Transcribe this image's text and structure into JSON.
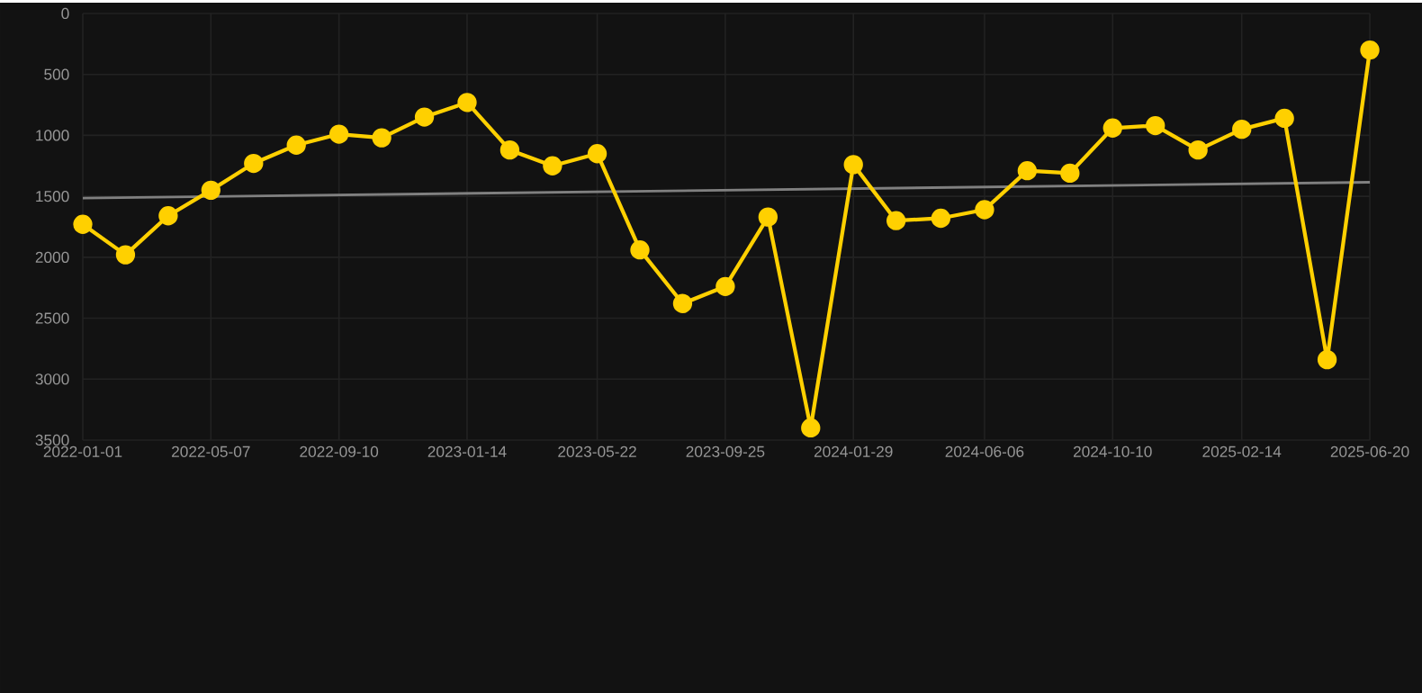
{
  "chart_data": {
    "type": "line",
    "x": [
      "2022-01-01",
      "2022-02-12",
      "2022-03-26",
      "2022-05-07",
      "2022-06-18",
      "2022-07-30",
      "2022-09-10",
      "2022-10-22",
      "2022-12-03",
      "2023-01-14",
      "2023-02-25",
      "2023-04-08",
      "2023-05-22",
      "2023-07-03",
      "2023-08-14",
      "2023-09-25",
      "2023-11-06",
      "2023-12-18",
      "2024-01-29",
      "2024-03-11",
      "2024-04-24",
      "2024-06-06",
      "2024-07-18",
      "2024-08-29",
      "2024-10-10",
      "2024-11-21",
      "2025-01-02",
      "2025-02-14",
      "2025-03-28",
      "2025-05-09",
      "2025-06-20"
    ],
    "series": [
      {
        "color": "#ffd000",
        "marker": "circle",
        "values": [
          1730,
          1980,
          1660,
          1450,
          1230,
          1080,
          990,
          1020,
          850,
          730,
          1120,
          1250,
          1150,
          1940,
          2380,
          2240,
          1670,
          3400,
          1240,
          1700,
          1680,
          1610,
          1290,
          1310,
          940,
          920,
          1120,
          950,
          860,
          2840,
          300
        ]
      },
      {
        "type": "line",
        "color": "#808080",
        "marker": "none",
        "x": [
          "2022-01-01",
          "2025-06-20"
        ],
        "values": [
          1515,
          1385
        ]
      }
    ],
    "xlim": [
      "2022-01-01",
      "2025-06-20"
    ],
    "xticks": [
      "2022-01-01",
      "2022-05-07",
      "2022-09-10",
      "2023-01-14",
      "2023-05-22",
      "2023-09-25",
      "2024-01-29",
      "2024-06-06",
      "2024-10-10",
      "2025-02-14",
      "2025-06-20"
    ],
    "ylim": [
      3500,
      0
    ],
    "yticks": [
      0,
      500,
      1000,
      1500,
      2000,
      2500,
      3000,
      3500
    ],
    "grid": true
  }
}
